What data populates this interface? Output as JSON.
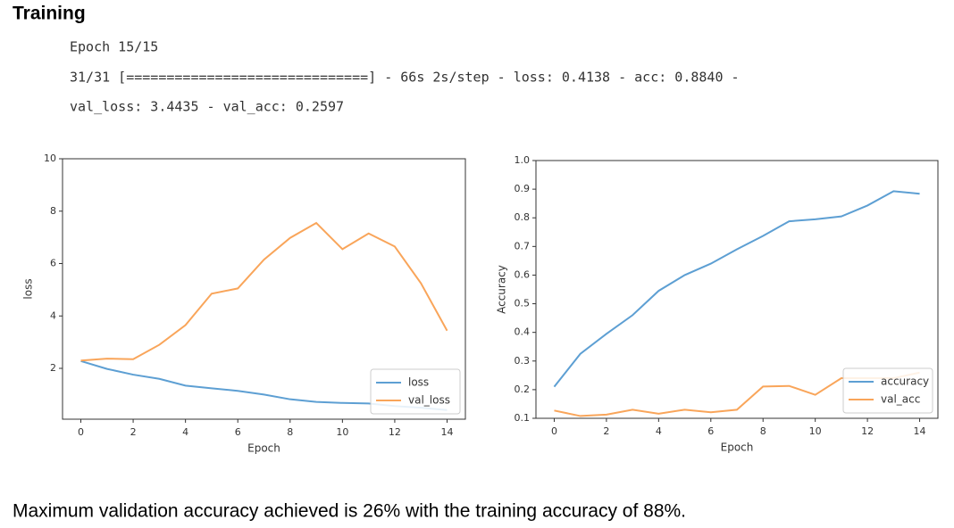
{
  "heading": "Training",
  "console": [
    "Epoch 15/15",
    "31/31 [==============================] - 66s 2s/step - loss: 0.4138 - acc: 0.8840 -",
    "val_loss: 3.4435 - val_acc: 0.2597"
  ],
  "chart_data": [
    {
      "type": "line",
      "x_label": "Epoch",
      "y_label": "loss",
      "x": [
        0,
        1,
        2,
        3,
        4,
        5,
        6,
        7,
        8,
        9,
        10,
        11,
        12,
        13,
        14
      ],
      "xlim": [
        -0.7,
        14.7
      ],
      "xticks": [
        0,
        2,
        4,
        6,
        8,
        10,
        12,
        14
      ],
      "ylim": [
        0.06,
        10
      ],
      "yticks": [
        2,
        4,
        6,
        8,
        10
      ],
      "legend": "lower right",
      "series": [
        {
          "name": "loss",
          "color": "#5d9fd3",
          "values": [
            2.28,
            1.98,
            1.76,
            1.6,
            1.34,
            1.24,
            1.14,
            1.0,
            0.82,
            0.72,
            0.68,
            0.66,
            0.56,
            0.5,
            0.41
          ]
        },
        {
          "name": "val_loss",
          "color": "#f9a55a",
          "values": [
            2.3,
            2.37,
            2.35,
            2.9,
            3.65,
            4.85,
            5.05,
            6.15,
            6.98,
            7.55,
            6.55,
            7.15,
            6.65,
            5.25,
            3.44
          ]
        }
      ]
    },
    {
      "type": "line",
      "x_label": "Epoch",
      "y_label": "Accuracy",
      "x": [
        0,
        1,
        2,
        3,
        4,
        5,
        6,
        7,
        8,
        9,
        10,
        11,
        12,
        13,
        14
      ],
      "xlim": [
        -0.7,
        14.7
      ],
      "xticks": [
        0,
        2,
        4,
        6,
        8,
        10,
        12,
        14
      ],
      "ylim": [
        0.1,
        1.0
      ],
      "yticks": [
        0.1,
        0.2,
        0.3,
        0.4,
        0.5,
        0.6,
        0.7,
        0.8,
        0.9,
        {
          "value": 1.0,
          "label": "1.0"
        }
      ],
      "legend": "lower right",
      "series": [
        {
          "name": "accuracy",
          "color": "#5d9fd3",
          "values": [
            0.21,
            0.325,
            0.395,
            0.46,
            0.545,
            0.6,
            0.64,
            0.69,
            0.737,
            0.788,
            0.795,
            0.805,
            0.843,
            0.893,
            0.884
          ]
        },
        {
          "name": "val_acc",
          "color": "#f9a55a",
          "values": [
            0.127,
            0.108,
            0.113,
            0.13,
            0.116,
            0.13,
            0.121,
            0.13,
            0.211,
            0.213,
            0.182,
            0.24,
            0.24,
            0.24,
            0.2597
          ]
        }
      ]
    }
  ],
  "conclusion": "Maximum validation accuracy achieved is 26% with the training accuracy of 88%."
}
